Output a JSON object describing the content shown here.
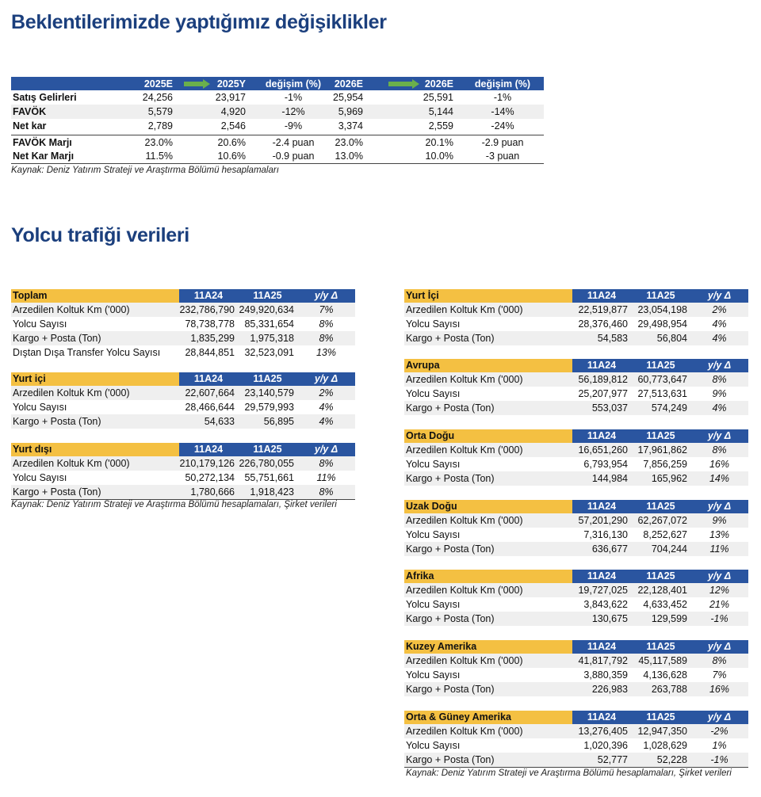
{
  "section1": {
    "title": "Beklentilerimizde yaptığımız değişiklikler",
    "headers": [
      "",
      "2025E",
      "2025Y",
      "değişim (%)",
      "2026E",
      "2026E",
      "değişim (%)"
    ],
    "arrow_color": "#6ab04c",
    "rows": [
      [
        "Satış Gelirleri",
        "24,256",
        "23,917",
        "-1%",
        "25,954",
        "25,591",
        "-1%"
      ],
      [
        "FAVÖK",
        "5,579",
        "4,920",
        "-12%",
        "5,969",
        "5,144",
        "-14%"
      ],
      [
        "Net kar",
        "2,789",
        "2,546",
        "-9%",
        "3,374",
        "2,559",
        "-24%"
      ],
      [
        "FAVÖK Marjı",
        "23.0%",
        "20.6%",
        "-2.4 puan",
        "23.0%",
        "20.1%",
        "-2.9 puan"
      ],
      [
        "Net Kar Marjı",
        "11.5%",
        "10.6%",
        "-0.9 puan",
        "13.0%",
        "10.0%",
        "-3 puan"
      ]
    ],
    "source": "Kaynak: Deniz Yatırım Strateji ve Araştırma Bölümü hesaplamaları"
  },
  "section2": {
    "title": "Yolcu trafiği verileri",
    "col_headers": [
      "11A24",
      "11A25",
      "y/y Δ"
    ],
    "colors": {
      "header_yellow": "#f4c042",
      "header_blue": "#2a55a0"
    },
    "left_tables": [
      {
        "name": "Toplam",
        "rows": [
          [
            "Arzedilen Koltuk Km ('000)",
            "232,786,790",
            "249,920,634",
            "7%"
          ],
          [
            "Yolcu Sayısı",
            "78,738,778",
            "85,331,654",
            "8%"
          ],
          [
            "Kargo + Posta (Ton)",
            "1,835,299",
            "1,975,318",
            "8%"
          ],
          [
            "Dıştan Dışa Transfer Yolcu Sayısı",
            "28,844,851",
            "32,523,091",
            "13%"
          ]
        ]
      },
      {
        "name": "Yurt içi",
        "rows": [
          [
            "Arzedilen Koltuk Km ('000)",
            "22,607,664",
            "23,140,579",
            "2%"
          ],
          [
            "Yolcu Sayısı",
            "28,466,644",
            "29,579,993",
            "4%"
          ],
          [
            "Kargo + Posta (Ton)",
            "54,633",
            "56,895",
            "4%"
          ]
        ]
      },
      {
        "name": "Yurt dışı",
        "rows": [
          [
            "Arzedilen Koltuk Km ('000)",
            "210,179,126",
            "226,780,055",
            "8%"
          ],
          [
            "Yolcu Sayısı",
            "50,272,134",
            "55,751,661",
            "11%"
          ],
          [
            "Kargo + Posta (Ton)",
            "1,780,666",
            "1,918,423",
            "8%"
          ]
        ]
      }
    ],
    "left_source": "Kaynak: Deniz Yatırım Strateji ve Araştırma Bölümü hesaplamaları, Şirket verileri",
    "right_tables": [
      {
        "name": "Yurt İçi",
        "rows": [
          [
            "Arzedilen Koltuk Km ('000)",
            "22,519,877",
            "23,054,198",
            "2%"
          ],
          [
            "Yolcu Sayısı",
            "28,376,460",
            "29,498,954",
            "4%"
          ],
          [
            "Kargo + Posta (Ton)",
            "54,583",
            "56,804",
            "4%"
          ]
        ]
      },
      {
        "name": "Avrupa",
        "rows": [
          [
            "Arzedilen Koltuk Km ('000)",
            "56,189,812",
            "60,773,647",
            "8%"
          ],
          [
            "Yolcu Sayısı",
            "25,207,977",
            "27,513,631",
            "9%"
          ],
          [
            "Kargo + Posta (Ton)",
            "553,037",
            "574,249",
            "4%"
          ]
        ]
      },
      {
        "name": "Orta Doğu",
        "rows": [
          [
            "Arzedilen Koltuk Km ('000)",
            "16,651,260",
            "17,961,862",
            "8%"
          ],
          [
            "Yolcu Sayısı",
            "6,793,954",
            "7,856,259",
            "16%"
          ],
          [
            "Kargo + Posta (Ton)",
            "144,984",
            "165,962",
            "14%"
          ]
        ]
      },
      {
        "name": "Uzak Doğu",
        "rows": [
          [
            "Arzedilen Koltuk Km ('000)",
            "57,201,290",
            "62,267,072",
            "9%"
          ],
          [
            "Yolcu Sayısı",
            "7,316,130",
            "8,252,627",
            "13%"
          ],
          [
            "Kargo + Posta (Ton)",
            "636,677",
            "704,244",
            "11%"
          ]
        ]
      },
      {
        "name": "Afrika",
        "rows": [
          [
            "Arzedilen Koltuk Km ('000)",
            "19,727,025",
            "22,128,401",
            "12%"
          ],
          [
            "Yolcu Sayısı",
            "3,843,622",
            "4,633,452",
            "21%"
          ],
          [
            "Kargo + Posta (Ton)",
            "130,675",
            "129,599",
            "-1%"
          ]
        ]
      },
      {
        "name": "Kuzey Amerika",
        "rows": [
          [
            "Arzedilen Koltuk Km ('000)",
            "41,817,792",
            "45,117,589",
            "8%"
          ],
          [
            "Yolcu Sayısı",
            "3,880,359",
            "4,136,628",
            "7%"
          ],
          [
            "Kargo + Posta (Ton)",
            "226,983",
            "263,788",
            "16%"
          ]
        ]
      },
      {
        "name": "Orta & Güney Amerika",
        "rows": [
          [
            "Arzedilen Koltuk Km ('000)",
            "13,276,405",
            "12,947,350",
            "-2%"
          ],
          [
            "Yolcu Sayısı",
            "1,020,396",
            "1,028,629",
            "1%"
          ],
          [
            "Kargo + Posta (Ton)",
            "52,777",
            "52,228",
            "-1%"
          ]
        ]
      }
    ],
    "right_source": "Kaynak: Deniz Yatırım Strateji ve Araştırma Bölümü hesaplamaları, Şirket verileri"
  }
}
